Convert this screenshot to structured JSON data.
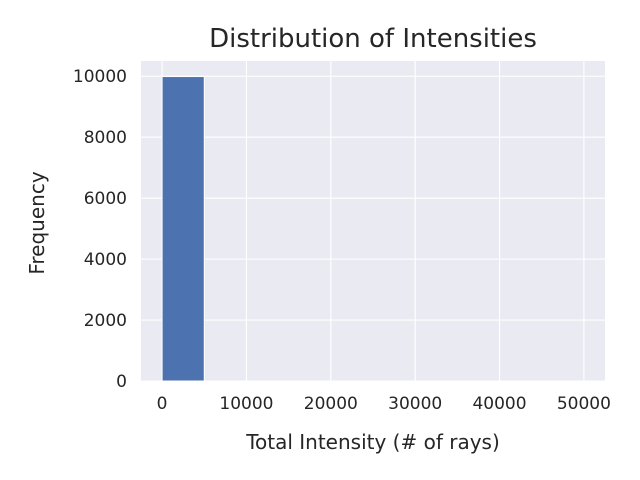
{
  "chart_data": {
    "type": "bar",
    "title": "Distribution of Intensities",
    "xlabel": "Total Intensity (# of rays)",
    "ylabel": "Frequency",
    "xlim": [
      -2500,
      52500
    ],
    "ylim": [
      0,
      10500
    ],
    "x_ticks": [
      0,
      10000,
      20000,
      30000,
      40000,
      50000
    ],
    "y_ticks": [
      0,
      2000,
      4000,
      6000,
      8000,
      10000
    ],
    "grid": true,
    "bins": [
      {
        "start": 0,
        "end": 5000,
        "count": 9990
      },
      {
        "start": 5000,
        "end": 10000,
        "count": 0
      },
      {
        "start": 10000,
        "end": 15000,
        "count": 0
      },
      {
        "start": 15000,
        "end": 20000,
        "count": 0
      },
      {
        "start": 20000,
        "end": 25000,
        "count": 0
      },
      {
        "start": 25000,
        "end": 30000,
        "count": 0
      },
      {
        "start": 30000,
        "end": 35000,
        "count": 0
      },
      {
        "start": 35000,
        "end": 40000,
        "count": 0
      },
      {
        "start": 40000,
        "end": 45000,
        "count": 0
      },
      {
        "start": 45000,
        "end": 50000,
        "count": 0
      }
    ],
    "colors": {
      "bar": "#4c72b0",
      "plot_background": "#eaeaf2",
      "grid": "#ffffff",
      "text": "#262626"
    }
  }
}
